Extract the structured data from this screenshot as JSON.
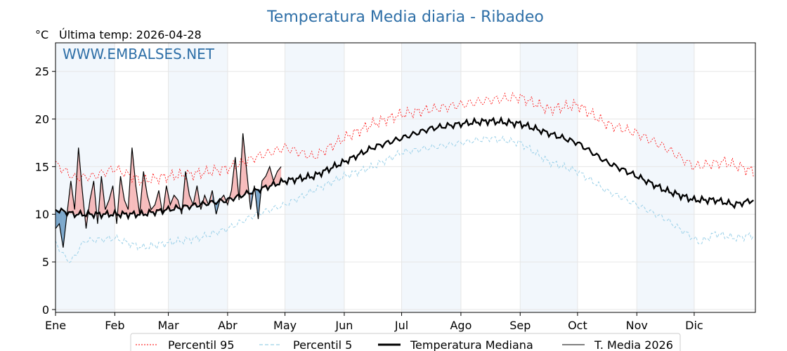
{
  "chart_data": {
    "type": "line",
    "title": "Temperatura Media diaria - Ribadeo",
    "unit_label": "°C",
    "last_temp_label": "Última temp: 2026-04-28",
    "watermark": "WWW.EMBALSES.NET",
    "xlabel": "",
    "ylabel": "",
    "ylim": [
      -0.3,
      28.0
    ],
    "yticks": [
      0,
      5,
      10,
      15,
      20,
      25
    ],
    "xlim": [
      0,
      366
    ],
    "months": [
      "Ene",
      "Feb",
      "Mar",
      "Abr",
      "May",
      "Jun",
      "Jul",
      "Ago",
      "Sep",
      "Oct",
      "Nov",
      "Dic"
    ],
    "month_starts": [
      0,
      31,
      59,
      90,
      120,
      151,
      181,
      212,
      243,
      273,
      304,
      334
    ],
    "grid": true,
    "legend_position": "bottom",
    "series": [
      {
        "name": "Percentil 95",
        "color": "#ff0000",
        "style": "dotted",
        "x": [
          0,
          10,
          20,
          31,
          45,
          59,
          75,
          90,
          105,
          120,
          135,
          151,
          166,
          181,
          196,
          212,
          227,
          243,
          258,
          273,
          288,
          304,
          319,
          334,
          350,
          365
        ],
        "values": [
          15.3,
          13.8,
          14.0,
          14.8,
          13.5,
          14.0,
          14.3,
          14.8,
          16.0,
          17.0,
          16.0,
          18.0,
          19.5,
          20.5,
          21.0,
          21.5,
          22.0,
          22.3,
          21.0,
          21.5,
          19.5,
          18.5,
          17.0,
          15.0,
          15.5,
          14.5
        ]
      },
      {
        "name": "Percentil 5",
        "color": "#9ad0e8",
        "style": "dashed",
        "x": [
          0,
          5,
          8,
          15,
          31,
          45,
          59,
          75,
          90,
          105,
          120,
          135,
          151,
          166,
          181,
          196,
          212,
          227,
          243,
          258,
          273,
          288,
          304,
          319,
          330,
          337,
          345,
          355,
          365
        ],
        "values": [
          7.0,
          5.5,
          5.0,
          7.2,
          7.5,
          6.5,
          7.0,
          7.5,
          8.5,
          10.0,
          11.0,
          12.5,
          14.0,
          15.0,
          16.5,
          17.0,
          17.5,
          18.0,
          17.5,
          15.5,
          14.5,
          12.5,
          11.0,
          9.5,
          8.0,
          7.0,
          8.0,
          7.5,
          7.8
        ]
      },
      {
        "name": "Temperatura Mediana",
        "color": "#000000",
        "style": "solid-thick",
        "x": [
          0,
          10,
          20,
          31,
          45,
          59,
          75,
          90,
          105,
          120,
          135,
          151,
          166,
          181,
          196,
          212,
          227,
          243,
          258,
          273,
          288,
          304,
          319,
          334,
          345,
          355,
          365
        ],
        "values": [
          10.5,
          10.0,
          10.0,
          10.0,
          10.0,
          10.5,
          11.0,
          11.5,
          12.5,
          13.5,
          14.0,
          15.5,
          17.0,
          18.0,
          19.0,
          19.5,
          19.8,
          19.5,
          18.5,
          17.5,
          15.5,
          14.0,
          12.5,
          11.5,
          11.5,
          11.0,
          11.5
        ]
      },
      {
        "name": "T. Media 2026",
        "color": "#000000",
        "style": "solid-thin",
        "x": [
          0,
          2,
          4,
          6,
          8,
          10,
          12,
          14,
          16,
          18,
          20,
          22,
          24,
          26,
          28,
          30,
          32,
          34,
          36,
          38,
          40,
          42,
          44,
          46,
          48,
          50,
          52,
          54,
          56,
          58,
          60,
          62,
          64,
          66,
          68,
          70,
          72,
          74,
          76,
          78,
          80,
          82,
          84,
          86,
          88,
          90,
          92,
          94,
          96,
          98,
          100,
          102,
          104,
          106,
          108,
          110,
          112,
          114,
          116,
          118
        ],
        "values": [
          8.5,
          9.0,
          6.5,
          10.0,
          13.5,
          10.5,
          17.0,
          12.5,
          8.5,
          11.5,
          13.5,
          9.0,
          14.0,
          10.5,
          11.5,
          13.0,
          9.0,
          14.0,
          11.5,
          10.5,
          17.0,
          13.0,
          10.0,
          14.5,
          12.0,
          10.5,
          11.0,
          12.5,
          10.0,
          13.0,
          11.0,
          12.0,
          11.5,
          10.0,
          14.5,
          12.0,
          11.0,
          13.0,
          10.5,
          12.0,
          11.0,
          12.5,
          10.0,
          11.5,
          12.0,
          11.0,
          12.5,
          16.0,
          11.5,
          18.5,
          14.5,
          10.5,
          13.0,
          9.5,
          13.5,
          14.0,
          15.0,
          13.5,
          14.5,
          15.0
        ]
      }
    ]
  }
}
